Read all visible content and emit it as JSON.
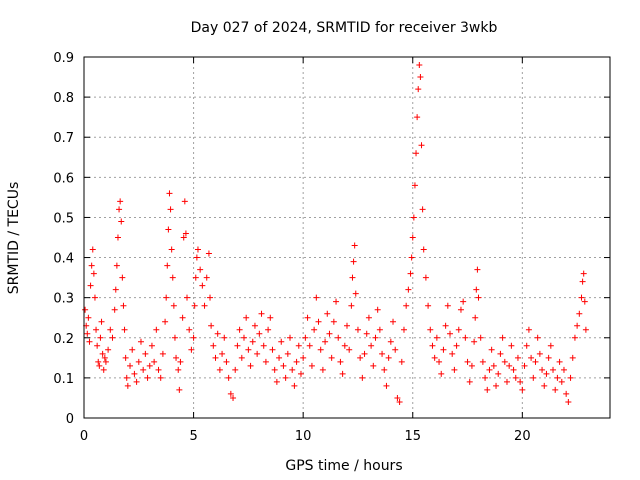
{
  "chart_data": {
    "type": "scatter",
    "title": "Day 027 of 2024, SRMTID for receiver 3wkb",
    "xlabel": "GPS time / hours",
    "ylabel": "SRMTID / TECUs",
    "xlim": [
      0,
      24
    ],
    "ylim": [
      0,
      0.9
    ],
    "xticks": [
      0,
      5,
      10,
      15,
      20
    ],
    "yticks": [
      0,
      0.1,
      0.2,
      0.3,
      0.4,
      0.5,
      0.6,
      0.7,
      0.8,
      0.9
    ],
    "grid": true,
    "marker": "+",
    "color": "#ff0000",
    "series": [
      {
        "name": "SRMTID",
        "points": [
          [
            0.05,
            0.27
          ],
          [
            0.1,
            0.23
          ],
          [
            0.15,
            0.21
          ],
          [
            0.2,
            0.25
          ],
          [
            0.25,
            0.19
          ],
          [
            0.3,
            0.33
          ],
          [
            0.35,
            0.38
          ],
          [
            0.4,
            0.42
          ],
          [
            0.45,
            0.36
          ],
          [
            0.5,
            0.3
          ],
          [
            0.55,
            0.22
          ],
          [
            0.6,
            0.18
          ],
          [
            0.65,
            0.14
          ],
          [
            0.7,
            0.13
          ],
          [
            0.75,
            0.2
          ],
          [
            0.8,
            0.24
          ],
          [
            0.85,
            0.16
          ],
          [
            0.9,
            0.12
          ],
          [
            0.95,
            0.15
          ],
          [
            1.0,
            0.14
          ],
          [
            1.1,
            0.17
          ],
          [
            1.2,
            0.22
          ],
          [
            1.3,
            0.2
          ],
          [
            1.4,
            0.27
          ],
          [
            1.45,
            0.32
          ],
          [
            1.5,
            0.38
          ],
          [
            1.55,
            0.45
          ],
          [
            1.6,
            0.52
          ],
          [
            1.65,
            0.54
          ],
          [
            1.7,
            0.49
          ],
          [
            1.75,
            0.35
          ],
          [
            1.8,
            0.28
          ],
          [
            1.85,
            0.22
          ],
          [
            1.9,
            0.15
          ],
          [
            1.95,
            0.1
          ],
          [
            2.0,
            0.08
          ],
          [
            2.1,
            0.13
          ],
          [
            2.2,
            0.17
          ],
          [
            2.3,
            0.11
          ],
          [
            2.4,
            0.09
          ],
          [
            2.5,
            0.14
          ],
          [
            2.6,
            0.19
          ],
          [
            2.7,
            0.12
          ],
          [
            2.8,
            0.16
          ],
          [
            2.9,
            0.1
          ],
          [
            3.0,
            0.13
          ],
          [
            3.1,
            0.18
          ],
          [
            3.2,
            0.14
          ],
          [
            3.3,
            0.22
          ],
          [
            3.4,
            0.12
          ],
          [
            3.5,
            0.1
          ],
          [
            3.6,
            0.16
          ],
          [
            3.7,
            0.24
          ],
          [
            3.75,
            0.3
          ],
          [
            3.8,
            0.38
          ],
          [
            3.85,
            0.47
          ],
          [
            3.9,
            0.56
          ],
          [
            3.95,
            0.52
          ],
          [
            4.0,
            0.42
          ],
          [
            4.05,
            0.35
          ],
          [
            4.1,
            0.28
          ],
          [
            4.15,
            0.2
          ],
          [
            4.2,
            0.15
          ],
          [
            4.3,
            0.12
          ],
          [
            4.35,
            0.07
          ],
          [
            4.4,
            0.14
          ],
          [
            4.5,
            0.25
          ],
          [
            4.55,
            0.45
          ],
          [
            4.6,
            0.54
          ],
          [
            4.65,
            0.46
          ],
          [
            4.7,
            0.3
          ],
          [
            4.8,
            0.22
          ],
          [
            4.9,
            0.17
          ],
          [
            5.0,
            0.2
          ],
          [
            5.05,
            0.28
          ],
          [
            5.1,
            0.35
          ],
          [
            5.15,
            0.4
          ],
          [
            5.2,
            0.42
          ],
          [
            5.3,
            0.37
          ],
          [
            5.4,
            0.33
          ],
          [
            5.5,
            0.28
          ],
          [
            5.6,
            0.35
          ],
          [
            5.7,
            0.41
          ],
          [
            5.75,
            0.3
          ],
          [
            5.8,
            0.23
          ],
          [
            5.9,
            0.18
          ],
          [
            6.0,
            0.15
          ],
          [
            6.1,
            0.21
          ],
          [
            6.2,
            0.12
          ],
          [
            6.3,
            0.16
          ],
          [
            6.4,
            0.2
          ],
          [
            6.5,
            0.14
          ],
          [
            6.6,
            0.1
          ],
          [
            6.7,
            0.06
          ],
          [
            6.8,
            0.05
          ],
          [
            6.9,
            0.12
          ],
          [
            7.0,
            0.18
          ],
          [
            7.1,
            0.22
          ],
          [
            7.2,
            0.15
          ],
          [
            7.3,
            0.2
          ],
          [
            7.4,
            0.25
          ],
          [
            7.5,
            0.17
          ],
          [
            7.6,
            0.13
          ],
          [
            7.7,
            0.19
          ],
          [
            7.8,
            0.23
          ],
          [
            7.9,
            0.16
          ],
          [
            8.0,
            0.21
          ],
          [
            8.1,
            0.26
          ],
          [
            8.2,
            0.18
          ],
          [
            8.3,
            0.14
          ],
          [
            8.4,
            0.22
          ],
          [
            8.5,
            0.25
          ],
          [
            8.6,
            0.17
          ],
          [
            8.7,
            0.12
          ],
          [
            8.8,
            0.09
          ],
          [
            8.9,
            0.15
          ],
          [
            9.0,
            0.19
          ],
          [
            9.1,
            0.13
          ],
          [
            9.2,
            0.1
          ],
          [
            9.3,
            0.16
          ],
          [
            9.4,
            0.2
          ],
          [
            9.5,
            0.12
          ],
          [
            9.6,
            0.08
          ],
          [
            9.7,
            0.14
          ],
          [
            9.8,
            0.18
          ],
          [
            9.9,
            0.11
          ],
          [
            10.0,
            0.15
          ],
          [
            10.1,
            0.2
          ],
          [
            10.2,
            0.25
          ],
          [
            10.3,
            0.18
          ],
          [
            10.4,
            0.13
          ],
          [
            10.5,
            0.22
          ],
          [
            10.6,
            0.3
          ],
          [
            10.7,
            0.24
          ],
          [
            10.8,
            0.17
          ],
          [
            10.9,
            0.12
          ],
          [
            11.0,
            0.19
          ],
          [
            11.1,
            0.26
          ],
          [
            11.2,
            0.21
          ],
          [
            11.3,
            0.15
          ],
          [
            11.4,
            0.24
          ],
          [
            11.5,
            0.29
          ],
          [
            11.6,
            0.2
          ],
          [
            11.7,
            0.14
          ],
          [
            11.8,
            0.11
          ],
          [
            11.9,
            0.18
          ],
          [
            12.0,
            0.23
          ],
          [
            12.1,
            0.17
          ],
          [
            12.2,
            0.28
          ],
          [
            12.25,
            0.35
          ],
          [
            12.3,
            0.39
          ],
          [
            12.35,
            0.43
          ],
          [
            12.4,
            0.31
          ],
          [
            12.5,
            0.22
          ],
          [
            12.6,
            0.15
          ],
          [
            12.7,
            0.1
          ],
          [
            12.8,
            0.16
          ],
          [
            12.9,
            0.21
          ],
          [
            13.0,
            0.25
          ],
          [
            13.1,
            0.18
          ],
          [
            13.2,
            0.13
          ],
          [
            13.3,
            0.2
          ],
          [
            13.4,
            0.27
          ],
          [
            13.5,
            0.22
          ],
          [
            13.6,
            0.16
          ],
          [
            13.7,
            0.12
          ],
          [
            13.8,
            0.08
          ],
          [
            13.9,
            0.15
          ],
          [
            14.0,
            0.19
          ],
          [
            14.1,
            0.24
          ],
          [
            14.2,
            0.17
          ],
          [
            14.3,
            0.05
          ],
          [
            14.4,
            0.04
          ],
          [
            14.5,
            0.14
          ],
          [
            14.6,
            0.22
          ],
          [
            14.7,
            0.28
          ],
          [
            14.8,
            0.32
          ],
          [
            14.9,
            0.36
          ],
          [
            14.95,
            0.4
          ],
          [
            15.0,
            0.45
          ],
          [
            15.05,
            0.5
          ],
          [
            15.1,
            0.58
          ],
          [
            15.15,
            0.66
          ],
          [
            15.2,
            0.75
          ],
          [
            15.25,
            0.82
          ],
          [
            15.3,
            0.88
          ],
          [
            15.35,
            0.85
          ],
          [
            15.4,
            0.68
          ],
          [
            15.45,
            0.52
          ],
          [
            15.5,
            0.42
          ],
          [
            15.6,
            0.35
          ],
          [
            15.7,
            0.28
          ],
          [
            15.8,
            0.22
          ],
          [
            15.9,
            0.18
          ],
          [
            16.0,
            0.15
          ],
          [
            16.1,
            0.2
          ],
          [
            16.2,
            0.14
          ],
          [
            16.3,
            0.11
          ],
          [
            16.4,
            0.17
          ],
          [
            16.5,
            0.23
          ],
          [
            16.6,
            0.28
          ],
          [
            16.7,
            0.21
          ],
          [
            16.8,
            0.16
          ],
          [
            16.9,
            0.12
          ],
          [
            17.0,
            0.18
          ],
          [
            17.1,
            0.22
          ],
          [
            17.2,
            0.27
          ],
          [
            17.3,
            0.29
          ],
          [
            17.4,
            0.2
          ],
          [
            17.5,
            0.14
          ],
          [
            17.6,
            0.09
          ],
          [
            17.7,
            0.13
          ],
          [
            17.8,
            0.19
          ],
          [
            17.85,
            0.25
          ],
          [
            17.9,
            0.32
          ],
          [
            17.95,
            0.37
          ],
          [
            18.0,
            0.3
          ],
          [
            18.1,
            0.2
          ],
          [
            18.2,
            0.14
          ],
          [
            18.3,
            0.1
          ],
          [
            18.4,
            0.07
          ],
          [
            18.5,
            0.12
          ],
          [
            18.6,
            0.17
          ],
          [
            18.7,
            0.13
          ],
          [
            18.8,
            0.08
          ],
          [
            18.9,
            0.11
          ],
          [
            19.0,
            0.16
          ],
          [
            19.1,
            0.2
          ],
          [
            19.2,
            0.14
          ],
          [
            19.3,
            0.09
          ],
          [
            19.4,
            0.13
          ],
          [
            19.5,
            0.18
          ],
          [
            19.6,
            0.12
          ],
          [
            19.7,
            0.1
          ],
          [
            19.8,
            0.15
          ],
          [
            19.9,
            0.09
          ],
          [
            20.0,
            0.07
          ],
          [
            20.1,
            0.13
          ],
          [
            20.2,
            0.18
          ],
          [
            20.3,
            0.22
          ],
          [
            20.4,
            0.15
          ],
          [
            20.5,
            0.1
          ],
          [
            20.6,
            0.14
          ],
          [
            20.7,
            0.2
          ],
          [
            20.8,
            0.16
          ],
          [
            20.9,
            0.12
          ],
          [
            21.0,
            0.08
          ],
          [
            21.1,
            0.11
          ],
          [
            21.2,
            0.15
          ],
          [
            21.3,
            0.18
          ],
          [
            21.4,
            0.12
          ],
          [
            21.5,
            0.07
          ],
          [
            21.6,
            0.1
          ],
          [
            21.7,
            0.14
          ],
          [
            21.8,
            0.09
          ],
          [
            21.9,
            0.12
          ],
          [
            22.0,
            0.06
          ],
          [
            22.1,
            0.04
          ],
          [
            22.2,
            0.1
          ],
          [
            22.3,
            0.15
          ],
          [
            22.4,
            0.2
          ],
          [
            22.5,
            0.23
          ],
          [
            22.6,
            0.26
          ],
          [
            22.7,
            0.3
          ],
          [
            22.75,
            0.34
          ],
          [
            22.8,
            0.36
          ],
          [
            22.85,
            0.29
          ],
          [
            22.9,
            0.22
          ]
        ]
      }
    ]
  }
}
